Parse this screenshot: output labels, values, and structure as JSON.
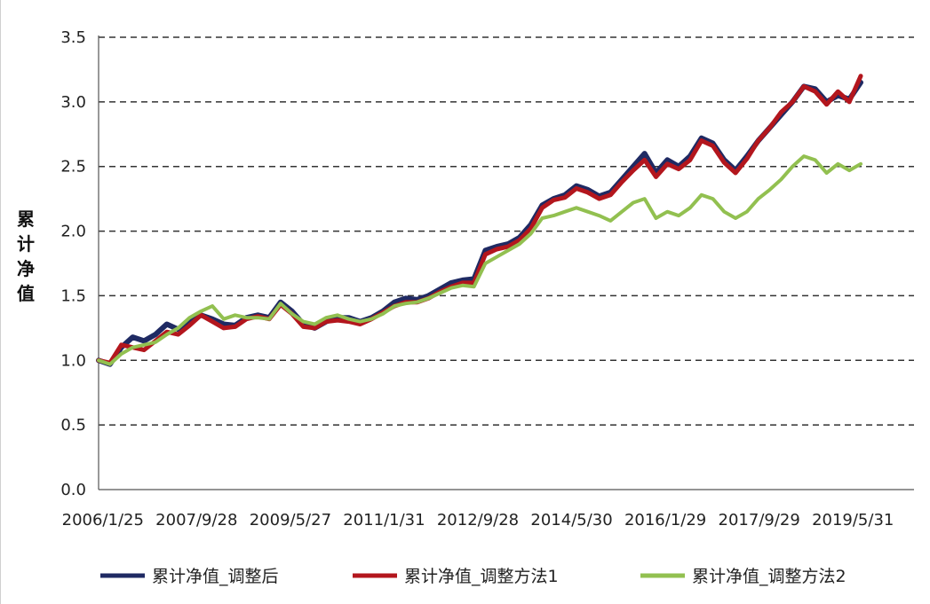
{
  "chart_data": {
    "type": "line",
    "title": "",
    "xlabel": "",
    "ylabel": "累计净值",
    "ylim": [
      0,
      3.5
    ],
    "yticks": [
      "0.0",
      "0.5",
      "1.0",
      "1.5",
      "2.0",
      "2.5",
      "3.0",
      "3.5"
    ],
    "xticks": [
      "2006/1/25",
      "2007/9/28",
      "2009/5/27",
      "2011/1/31",
      "2012/9/28",
      "2014/5/30",
      "2016/1/29",
      "2017/9/29",
      "2019/5/31"
    ],
    "grid": "horizontal dashed",
    "legend_position": "bottom",
    "series": [
      {
        "name": "累计净值_调整后",
        "color": "#1f2a63",
        "values": [
          1.0,
          0.97,
          1.1,
          1.18,
          1.15,
          1.2,
          1.28,
          1.24,
          1.3,
          1.35,
          1.32,
          1.28,
          1.27,
          1.33,
          1.35,
          1.33,
          1.45,
          1.38,
          1.28,
          1.25,
          1.3,
          1.33,
          1.33,
          1.3,
          1.33,
          1.38,
          1.45,
          1.48,
          1.47,
          1.5,
          1.55,
          1.6,
          1.62,
          1.63,
          1.85,
          1.88,
          1.9,
          1.95,
          2.05,
          2.2,
          2.25,
          2.28,
          2.35,
          2.32,
          2.27,
          2.3,
          2.4,
          2.5,
          2.6,
          2.45,
          2.55,
          2.5,
          2.58,
          2.72,
          2.68,
          2.55,
          2.47,
          2.58,
          2.7,
          2.8,
          2.9,
          3.0,
          3.12,
          3.1,
          3.0,
          3.05,
          3.02,
          3.15
        ]
      },
      {
        "name": "累计净值_调整方法1",
        "color": "#b3161d",
        "values": [
          1.0,
          0.98,
          1.12,
          1.1,
          1.08,
          1.15,
          1.22,
          1.2,
          1.27,
          1.35,
          1.3,
          1.25,
          1.26,
          1.32,
          1.34,
          1.32,
          1.43,
          1.36,
          1.26,
          1.25,
          1.3,
          1.31,
          1.3,
          1.28,
          1.32,
          1.37,
          1.42,
          1.45,
          1.45,
          1.48,
          1.53,
          1.57,
          1.6,
          1.6,
          1.82,
          1.86,
          1.88,
          1.93,
          2.02,
          2.18,
          2.24,
          2.26,
          2.33,
          2.3,
          2.25,
          2.28,
          2.38,
          2.47,
          2.55,
          2.42,
          2.52,
          2.48,
          2.55,
          2.7,
          2.66,
          2.53,
          2.45,
          2.56,
          2.7,
          2.8,
          2.92,
          3.0,
          3.12,
          3.08,
          2.98,
          3.08,
          3.0,
          3.2
        ]
      },
      {
        "name": "累计净值_调整方法2",
        "color": "#92c050",
        "values": [
          1.0,
          0.97,
          1.05,
          1.1,
          1.12,
          1.14,
          1.2,
          1.25,
          1.33,
          1.38,
          1.42,
          1.32,
          1.35,
          1.33,
          1.33,
          1.32,
          1.44,
          1.36,
          1.3,
          1.28,
          1.33,
          1.35,
          1.32,
          1.3,
          1.32,
          1.36,
          1.42,
          1.44,
          1.45,
          1.48,
          1.52,
          1.56,
          1.58,
          1.57,
          1.75,
          1.8,
          1.85,
          1.9,
          1.98,
          2.1,
          2.12,
          2.15,
          2.18,
          2.15,
          2.12,
          2.08,
          2.15,
          2.22,
          2.25,
          2.1,
          2.15,
          2.12,
          2.18,
          2.28,
          2.25,
          2.15,
          2.1,
          2.15,
          2.25,
          2.32,
          2.4,
          2.5,
          2.58,
          2.55,
          2.45,
          2.52,
          2.47,
          2.52
        ]
      }
    ]
  }
}
